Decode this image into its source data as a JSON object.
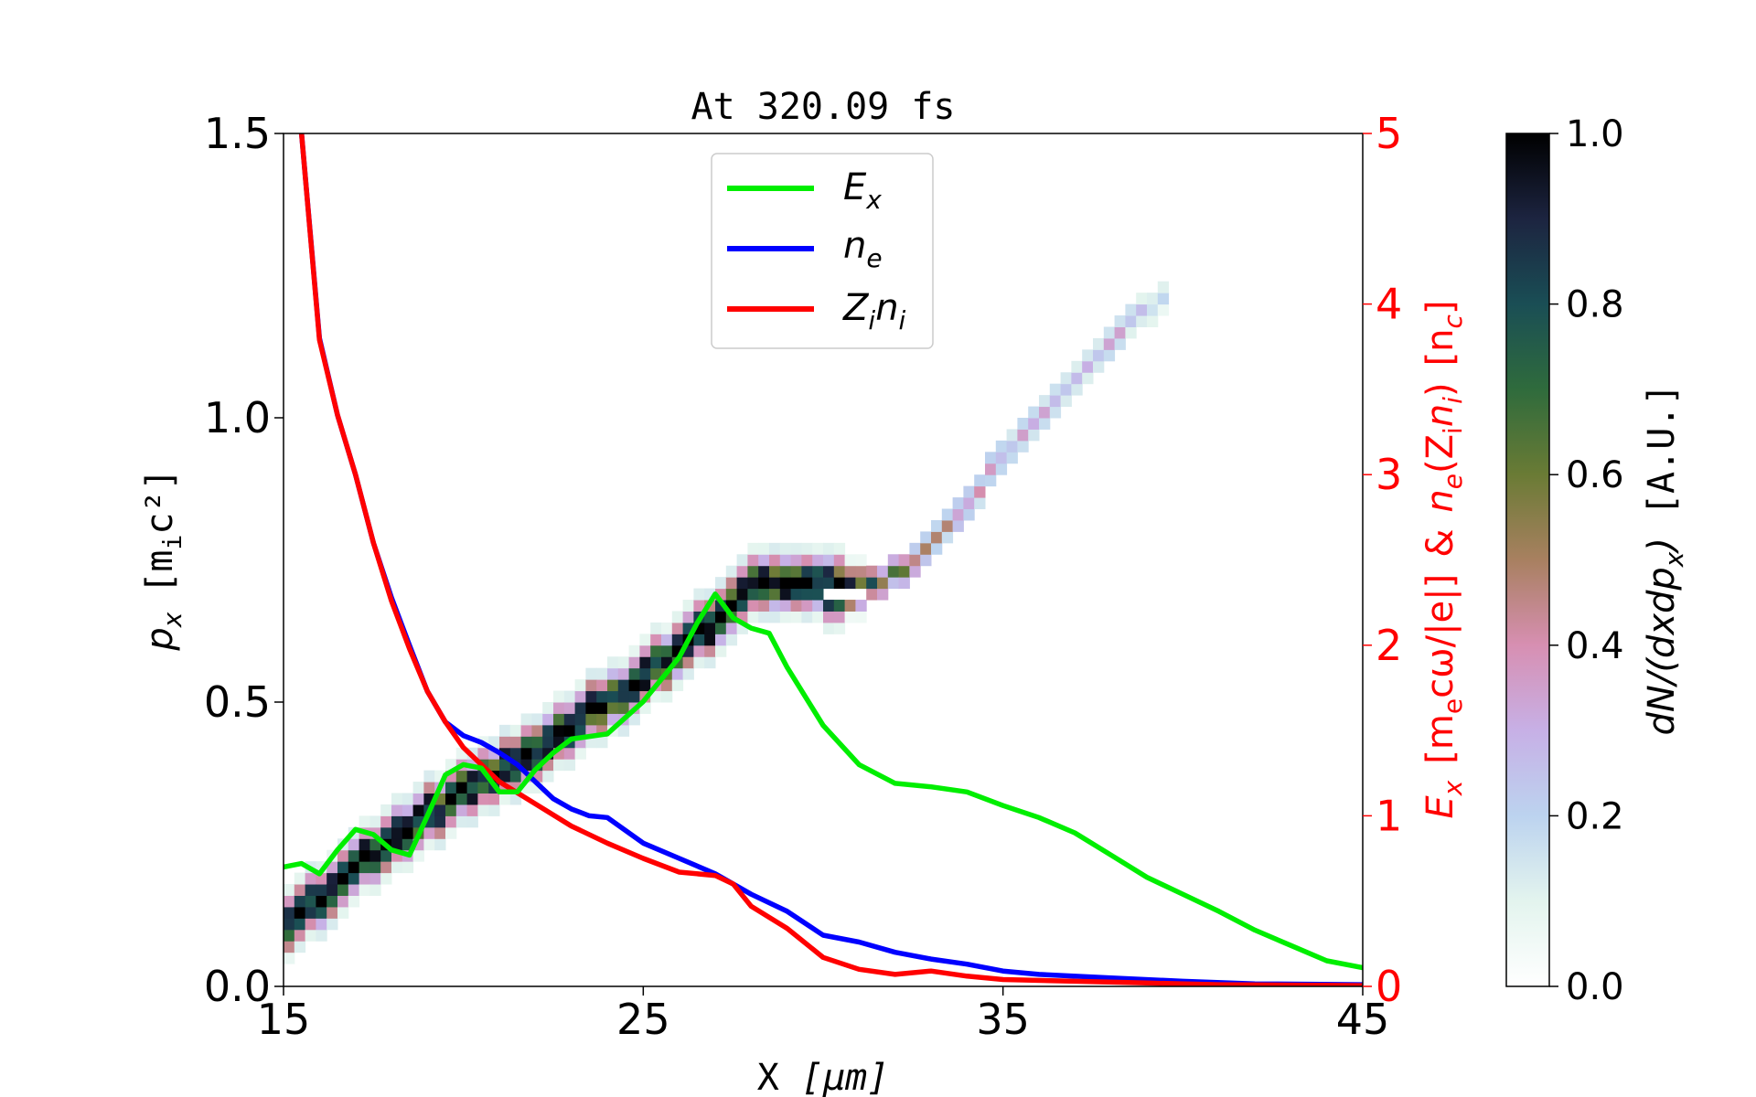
{
  "chart_data": {
    "type": "line",
    "title": "At 320.09 fs",
    "xlabel": {
      "main": "X",
      "unit": "[μm]"
    },
    "ylabel_left": {
      "sym": "p",
      "sub": "x",
      "unit_pre": "[m",
      "unit_sub": "i",
      "unit_post": "c²]"
    },
    "ylabel_right": "E_x [m_e cω/|e|] & n_e(Z_i n_i) [n_c]",
    "ylabel_right_parts": {
      "ex": "E",
      "ex_sub": "x",
      "u1": "[m",
      "u1_sub": "e",
      "u1_post": "cω/|e|]",
      "amp": "&",
      "ne": "n",
      "ne_sub": "e",
      "par": "(Z",
      "par_sub": "i",
      "ni": "n",
      "ni_sub": "i",
      "close": ")",
      "nc": "[n",
      "nc_sub": "c",
      "nc_close": "]"
    },
    "colorbar_label": "dN/(dxdp_x) [A.U.]",
    "colorbar_label_parts": {
      "pre": "dN/(dxdp",
      "sub": "x",
      "post": ")",
      "unit": "[A.U.]"
    },
    "xlim": [
      15,
      45
    ],
    "ylim_left": [
      0,
      1.5
    ],
    "ylim_right": [
      0,
      5
    ],
    "clim": [
      0,
      1
    ],
    "xticks": [
      "15",
      "25",
      "35",
      "45"
    ],
    "yticks_left": [
      "0.0",
      "0.5",
      "1.0",
      "1.5"
    ],
    "yticks_right": [
      "0",
      "1",
      "2",
      "3",
      "4",
      "5"
    ],
    "cticks": [
      "0.0",
      "0.2",
      "0.4",
      "0.6",
      "0.8",
      "1.0"
    ],
    "grid": false,
    "legend_placement": "top-center",
    "colors": {
      "Ex": "#00ee00",
      "ne": "#0000ff",
      "Zini": "#ff0000",
      "right_axis": "#ff0000"
    },
    "series": [
      {
        "name": "E_x",
        "label": {
          "sym": "E",
          "sub": "x"
        },
        "axis": "right",
        "x": [
          15,
          15.5,
          16,
          16.5,
          17,
          17.5,
          18,
          18.5,
          19,
          19.5,
          20,
          20.5,
          21,
          21.5,
          22,
          22.5,
          23,
          24,
          25,
          26,
          26.5,
          27,
          27.5,
          28,
          28.5,
          29,
          30,
          31,
          32,
          33,
          34,
          35,
          36,
          37,
          38,
          39,
          40,
          41,
          42,
          43,
          44,
          45
        ],
        "y": [
          0.7,
          0.72,
          0.66,
          0.8,
          0.92,
          0.89,
          0.8,
          0.77,
          1.0,
          1.24,
          1.3,
          1.28,
          1.14,
          1.14,
          1.27,
          1.37,
          1.45,
          1.48,
          1.67,
          1.93,
          2.13,
          2.3,
          2.16,
          2.1,
          2.07,
          1.87,
          1.53,
          1.3,
          1.19,
          1.17,
          1.14,
          1.06,
          0.99,
          0.9,
          0.77,
          0.64,
          0.54,
          0.44,
          0.33,
          0.24,
          0.15,
          0.11
        ]
      },
      {
        "name": "n_e",
        "label": {
          "sym": "n",
          "sub": "e"
        },
        "axis": "right",
        "x": [
          15.5,
          16,
          16.5,
          17,
          17.5,
          18,
          18.5,
          19,
          19.5,
          20,
          20.5,
          21,
          21.5,
          22,
          22.5,
          23,
          23.5,
          24,
          25,
          26,
          27,
          28,
          29,
          30,
          31,
          32,
          33,
          34,
          35,
          36,
          38,
          40,
          42,
          45
        ],
        "y": [
          5.0,
          3.8,
          3.35,
          3.0,
          2.6,
          2.28,
          2.0,
          1.73,
          1.55,
          1.47,
          1.43,
          1.37,
          1.3,
          1.2,
          1.1,
          1.04,
          1.0,
          0.99,
          0.84,
          0.75,
          0.66,
          0.54,
          0.44,
          0.3,
          0.26,
          0.2,
          0.16,
          0.13,
          0.09,
          0.07,
          0.05,
          0.03,
          0.015,
          0.01
        ]
      },
      {
        "name": "Z_i n_i",
        "label": {
          "sym": "Z",
          "sub": "i",
          "sym2": "n",
          "sub2": "i"
        },
        "axis": "right",
        "x": [
          15.5,
          16,
          16.5,
          17,
          17.5,
          18,
          18.5,
          19,
          19.5,
          20,
          20.5,
          21,
          22,
          23,
          24,
          25,
          26,
          27,
          27.5,
          28,
          29,
          30,
          31,
          32,
          33,
          34,
          35,
          37,
          39,
          41,
          45
        ],
        "y": [
          5.0,
          3.79,
          3.35,
          3.0,
          2.6,
          2.26,
          1.98,
          1.73,
          1.55,
          1.4,
          1.3,
          1.2,
          1.07,
          0.94,
          0.84,
          0.75,
          0.67,
          0.65,
          0.6,
          0.47,
          0.34,
          0.17,
          0.1,
          0.07,
          0.09,
          0.06,
          0.04,
          0.03,
          0.02,
          0.01,
          0.005
        ]
      }
    ],
    "phase_space": {
      "axis": "left",
      "x": [
        15,
        17,
        20,
        22,
        25,
        27,
        28,
        29,
        30,
        31,
        32,
        33,
        34,
        35,
        36,
        37,
        38,
        39,
        39.5
      ],
      "px": [
        0.1,
        0.21,
        0.34,
        0.41,
        0.54,
        0.64,
        0.7,
        0.7,
        0.69,
        0.69,
        0.72,
        0.78,
        0.85,
        0.93,
        1.0,
        1.07,
        1.14,
        1.19,
        1.2
      ],
      "intensity": [
        1,
        1,
        1,
        1,
        1,
        1,
        1,
        1,
        0.95,
        0.7,
        0.6,
        0.45,
        0.35,
        0.3,
        0.3,
        0.28,
        0.3,
        0.2,
        0.15
      ]
    }
  }
}
